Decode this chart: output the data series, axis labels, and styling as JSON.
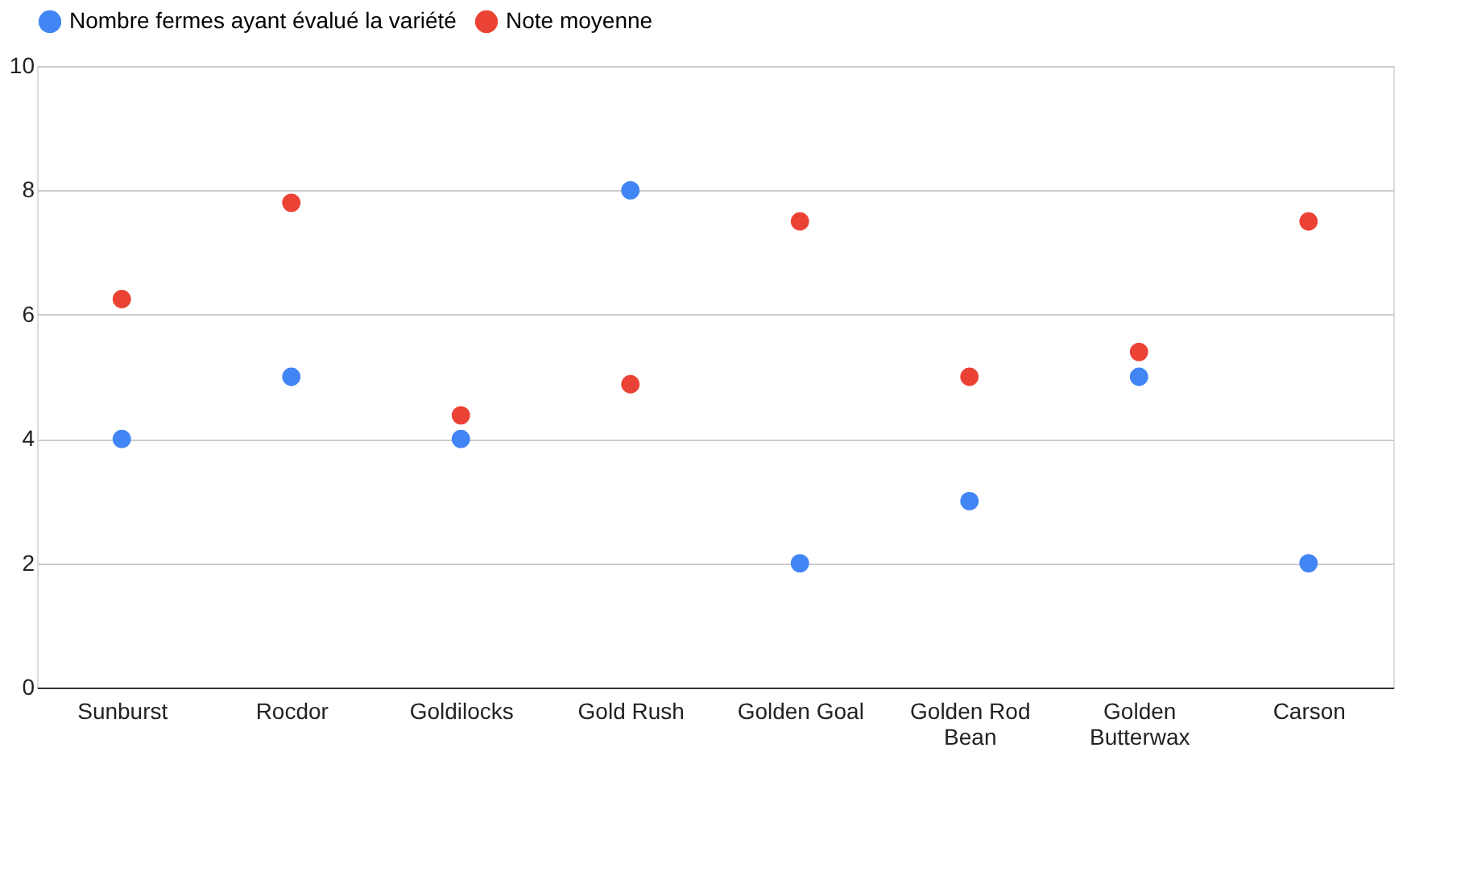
{
  "chart_data": {
    "type": "scatter",
    "categories": [
      "Sunburst",
      "Rocdor",
      "Goldilocks",
      "Gold Rush",
      "Golden Goal",
      "Golden Rod Bean",
      "Golden Butterwax",
      "Carson"
    ],
    "series": [
      {
        "name": "Nombre fermes ayant évalué la variété",
        "color": "#4285f4",
        "values": [
          4,
          5,
          4,
          8,
          2,
          3,
          5,
          2
        ]
      },
      {
        "name": "Note moyenne",
        "color": "#ea4335",
        "values": [
          6.25,
          7.8,
          4.38,
          4.88,
          7.5,
          5,
          5.4,
          7.5
        ]
      }
    ],
    "ylim": [
      0,
      10
    ],
    "yticks": [
      0,
      2,
      4,
      6,
      8,
      10
    ],
    "grid": "y",
    "legend": "top",
    "marker": "circle"
  }
}
